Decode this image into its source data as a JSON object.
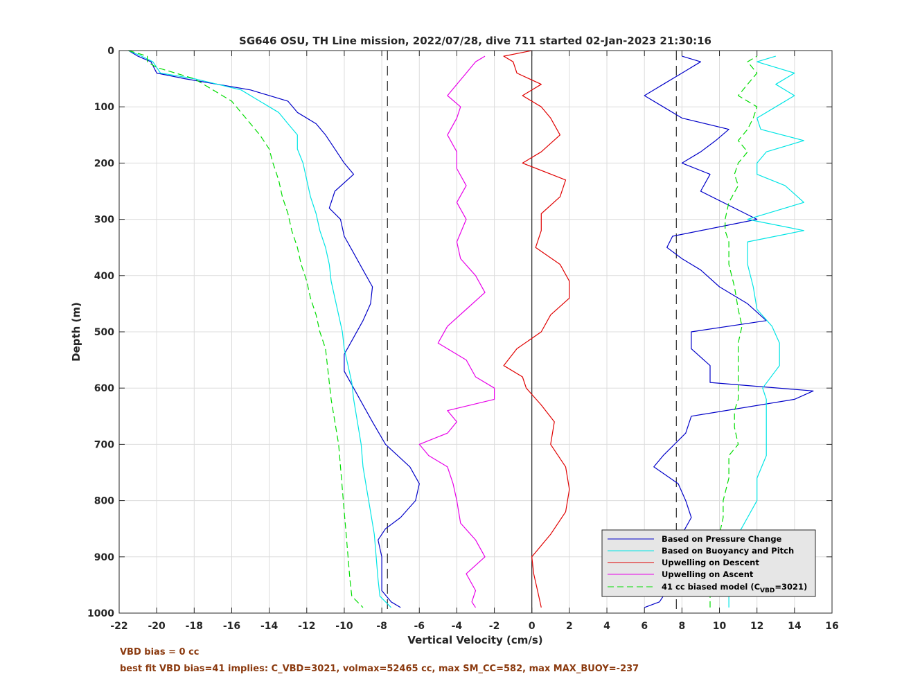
{
  "chart_data": {
    "type": "line",
    "title": "SG646 OSU, TH Line mission, 2022/07/28, dive 711 started 02-Jan-2023 21:30:16",
    "xlabel": "Vertical Velocity (cm/s)",
    "ylabel": "Depth (m)",
    "xlim": [
      -22,
      16
    ],
    "ylim": [
      0,
      1000
    ],
    "y_reversed": true,
    "grid": true,
    "x_ticks": [
      -22,
      -20,
      -18,
      -16,
      -14,
      -12,
      -10,
      -8,
      -6,
      -4,
      -2,
      0,
      2,
      4,
      6,
      8,
      10,
      12,
      14,
      16
    ],
    "y_ticks": [
      0,
      100,
      200,
      300,
      400,
      500,
      600,
      700,
      800,
      900,
      1000
    ],
    "reference_lines": [
      {
        "x": -7.7,
        "style": "dashed",
        "color": "#000000"
      },
      {
        "x": 0,
        "style": "solid",
        "color": "#000000"
      },
      {
        "x": 7.7,
        "style": "dashed",
        "color": "#000000"
      }
    ],
    "legend_position": "bottom-right",
    "series": [
      {
        "name": "Based on Pressure Change",
        "color": "#0000c8",
        "style": "solid",
        "branches": [
          {
            "depth": [
              0,
              10,
              20,
              40,
              50,
              70,
              90,
              110,
              130,
              150,
              175,
              200,
              220,
              250,
              280,
              300,
              330,
              360,
              390,
              420,
              450,
              480,
              510,
              540,
              570,
              600,
              630,
              660,
              700,
              740,
              770,
              800,
              830,
              850,
              870,
              900,
              930,
              960,
              980,
              990
            ],
            "velocity": [
              -21.5,
              -21,
              -20.3,
              -20,
              -18.5,
              -15,
              -13,
              -12.5,
              -11.5,
              -11,
              -10.5,
              -10,
              -9.5,
              -10.5,
              -10.8,
              -10.2,
              -10,
              -9.5,
              -9,
              -8.5,
              -8.6,
              -9,
              -9.5,
              -10,
              -10,
              -9.5,
              -9,
              -8.5,
              -7.8,
              -6.5,
              -6,
              -6.2,
              -7,
              -7.8,
              -8.2,
              -8,
              -8,
              -8,
              -7.5,
              -7
            ]
          },
          {
            "depth": [
              990,
              980,
              960,
              940,
              900,
              860,
              830,
              800,
              770,
              740,
              720,
              680,
              650,
              620,
              605,
              590,
              560,
              530,
              500,
              480,
              450,
              420,
              390,
              370,
              350,
              330,
              300,
              250,
              220,
              200,
              180,
              160,
              140,
              120,
              100,
              80,
              60,
              40,
              20,
              10
            ],
            "velocity": [
              6,
              6.8,
              7.2,
              7.5,
              7.8,
              8,
              8.5,
              8.2,
              7.8,
              6.5,
              7,
              8.2,
              8.5,
              14,
              15,
              9.5,
              9.5,
              8.5,
              8.5,
              12.5,
              11.5,
              10,
              9,
              8,
              7.2,
              7.5,
              12,
              9,
              9.5,
              8,
              9,
              9.8,
              10.5,
              8,
              7,
              6,
              7,
              8,
              9,
              8
            ]
          }
        ]
      },
      {
        "name": "Based on Buoyancy and Pitch",
        "color": "#00e5e5",
        "style": "solid",
        "branches": [
          {
            "depth": [
              0,
              10,
              20,
              40,
              50,
              70,
              90,
              110,
              130,
              150,
              175,
              200,
              230,
              260,
              290,
              320,
              350,
              380,
              410,
              440,
              470,
              500,
              530,
              560,
              590,
              620,
              660,
              700,
              740,
              780,
              820,
              860,
              900,
              940,
              970,
              990
            ],
            "velocity": [
              -21.5,
              -20.8,
              -20.2,
              -19.8,
              -18,
              -15.5,
              -14.5,
              -13.5,
              -13,
              -12.5,
              -12.5,
              -12.2,
              -12,
              -11.8,
              -11.5,
              -11.3,
              -11,
              -10.8,
              -10.7,
              -10.5,
              -10.3,
              -10.1,
              -10,
              -9.8,
              -9.6,
              -9.5,
              -9.3,
              -9.1,
              -9,
              -8.8,
              -8.6,
              -8.4,
              -8.3,
              -8.2,
              -8.1,
              -7.5
            ]
          },
          {
            "depth": [
              990,
              970,
              940,
              900,
              860,
              830,
              800,
              760,
              720,
              700,
              670,
              640,
              620,
              600,
              560,
              520,
              490,
              460,
              420,
              380,
              340,
              320,
              300,
              270,
              240,
              220,
              200,
              180,
              160,
              140,
              120,
              100,
              80,
              60,
              40,
              20,
              10
            ],
            "velocity": [
              10.5,
              10.5,
              10.5,
              10.5,
              11,
              11.5,
              12,
              12,
              12.5,
              12.5,
              12.5,
              12.5,
              12.5,
              12.3,
              13.2,
              13.2,
              12.8,
              12,
              11.8,
              11.5,
              11.5,
              14.5,
              11.5,
              14.5,
              13.5,
              12,
              12,
              12.5,
              14.5,
              12.2,
              12,
              13,
              14,
              13,
              14,
              12,
              13
            ]
          }
        ]
      },
      {
        "name": "Upwelling on Descent",
        "color": "#e00000",
        "style": "solid",
        "depth": [
          0,
          10,
          20,
          40,
          60,
          80,
          100,
          120,
          150,
          180,
          200,
          230,
          260,
          290,
          320,
          350,
          380,
          410,
          440,
          470,
          500,
          530,
          560,
          580,
          600,
          630,
          660,
          700,
          740,
          780,
          820,
          860,
          900,
          930,
          960,
          990
        ],
        "velocity": [
          0,
          -1.5,
          -1,
          -0.8,
          0.5,
          -0.5,
          0.5,
          1,
          1.5,
          0.5,
          -0.5,
          1.8,
          1.5,
          0.5,
          0.5,
          0.2,
          1.5,
          2,
          2,
          1,
          0.5,
          -0.8,
          -1.5,
          -0.5,
          -0.3,
          0.5,
          1.2,
          1,
          1.8,
          2,
          1.8,
          1,
          0,
          0.1,
          0.3,
          0.5
        ]
      },
      {
        "name": "Upwelling on Ascent",
        "color": "#e800e8",
        "style": "solid",
        "depth": [
          990,
          980,
          960,
          930,
          900,
          870,
          840,
          800,
          770,
          740,
          720,
          700,
          680,
          660,
          640,
          620,
          600,
          580,
          550,
          520,
          490,
          460,
          430,
          400,
          370,
          340,
          300,
          270,
          240,
          210,
          180,
          150,
          120,
          100,
          80,
          60,
          40,
          20,
          10
        ],
        "velocity": [
          -3,
          -3.2,
          -3,
          -3.5,
          -2.5,
          -3,
          -3.8,
          -4,
          -4.2,
          -4.5,
          -5.5,
          -6,
          -4.5,
          -4,
          -4.5,
          -2,
          -2,
          -3,
          -3.5,
          -5,
          -4.5,
          -3.5,
          -2.5,
          -3,
          -3.8,
          -4,
          -3.5,
          -4,
          -3.5,
          -4,
          -4,
          -4.5,
          -4,
          -3.8,
          -4.5,
          -4,
          -3.5,
          -3,
          -2.5
        ]
      },
      {
        "name": "41 cc biased model (C_VBD=3021)",
        "label_main": "41 cc biased model (C",
        "label_sub": "VBD",
        "label_tail": "=3021)",
        "color": "#00dd00",
        "style": "dashed",
        "branches": [
          {
            "depth": [
              0,
              10,
              20,
              30,
              50,
              70,
              90,
              110,
              130,
              150,
              175,
              200,
              230,
              260,
              290,
              320,
              350,
              380,
              410,
              440,
              470,
              500,
              530,
              560,
              590,
              620,
              660,
              700,
              740,
              780,
              820,
              860,
              900,
              940,
              970,
              990
            ],
            "velocity": [
              -21.5,
              -20.5,
              -20.5,
              -20,
              -18,
              -17,
              -16,
              -15.5,
              -15,
              -14.5,
              -14,
              -13.8,
              -13.5,
              -13.3,
              -13,
              -12.8,
              -12.5,
              -12.3,
              -12,
              -11.8,
              -11.5,
              -11.3,
              -11,
              -10.9,
              -10.8,
              -10.7,
              -10.5,
              -10.3,
              -10.2,
              -10.1,
              -10,
              -9.9,
              -9.8,
              -9.7,
              -9.6,
              -9
            ]
          },
          {
            "depth": [
              990,
              970,
              940,
              900,
              860,
              830,
              800,
              760,
              720,
              700,
              670,
              640,
              620,
              600,
              560,
              520,
              490,
              460,
              420,
              380,
              340,
              320,
              300,
              270,
              240,
              220,
              200,
              180,
              160,
              140,
              120,
              100,
              80,
              60,
              40,
              20,
              10
            ],
            "velocity": [
              9.5,
              9.5,
              9.8,
              10,
              10,
              10.2,
              10.2,
              10.5,
              10.5,
              11,
              10.8,
              10.8,
              11,
              11,
              11,
              11,
              11.2,
              11,
              10.8,
              10.5,
              10.5,
              10.3,
              10.3,
              10.5,
              11,
              10.8,
              11,
              11.5,
              11,
              11.5,
              11.8,
              12,
              11,
              11.5,
              12,
              11.5,
              12
            ]
          }
        ]
      }
    ]
  },
  "notes": {
    "vbd_bias": "VBD bias = 0 cc",
    "best_fit": "best fit VBD bias=41 implies: C_VBD=3021, volmax=52465 cc, max SM_CC=582, max MAX_BUOY=-237"
  }
}
